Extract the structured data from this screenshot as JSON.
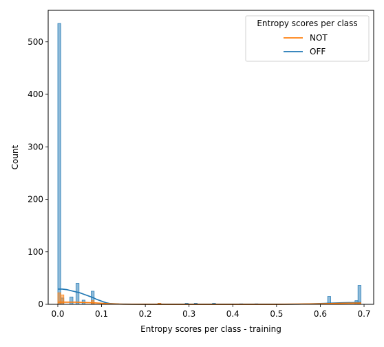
{
  "chart_data": {
    "type": "histogram",
    "xlabel": "Entropy scores per class - training",
    "ylabel": "Count",
    "xlim": [
      -0.022,
      0.722
    ],
    "ylim": [
      0,
      560
    ],
    "xticks": [
      "0.0",
      "0.1",
      "0.2",
      "0.3",
      "0.4",
      "0.5",
      "0.6",
      "0.7"
    ],
    "xtick_values": [
      0,
      0.1,
      0.2,
      0.3,
      0.4,
      0.5,
      0.6,
      0.7
    ],
    "yticks": [
      "0",
      "100",
      "200",
      "300",
      "400",
      "500"
    ],
    "ytick_values": [
      0,
      100,
      200,
      300,
      400,
      500
    ],
    "legend": {
      "title": "Entropy scores per class",
      "placement": "top-right",
      "entries": [
        {
          "label": "NOT",
          "color": "#ff7f0e"
        },
        {
          "label": "OFF",
          "color": "#1f77b4"
        }
      ]
    },
    "bin_width": 0.00693,
    "series": [
      {
        "name": "OFF",
        "color": "#1f77b4",
        "bars": [
          {
            "x": 0.0,
            "count": 535
          },
          {
            "x": 0.0069,
            "count": 12
          },
          {
            "x": 0.0277,
            "count": 14
          },
          {
            "x": 0.0416,
            "count": 40
          },
          {
            "x": 0.0555,
            "count": 8
          },
          {
            "x": 0.0762,
            "count": 25
          },
          {
            "x": 0.2287,
            "count": 2
          },
          {
            "x": 0.2911,
            "count": 2
          },
          {
            "x": 0.3119,
            "count": 2
          },
          {
            "x": 0.3535,
            "count": 2
          },
          {
            "x": 0.4158,
            "count": 1
          },
          {
            "x": 0.4505,
            "count": 1
          },
          {
            "x": 0.6168,
            "count": 15
          },
          {
            "x": 0.6792,
            "count": 7
          },
          {
            "x": 0.6861,
            "count": 36
          }
        ],
        "kde": [
          {
            "x": 0.0,
            "y": 29
          },
          {
            "x": 0.01,
            "y": 29
          },
          {
            "x": 0.02,
            "y": 28
          },
          {
            "x": 0.03,
            "y": 26
          },
          {
            "x": 0.04,
            "y": 24
          },
          {
            "x": 0.05,
            "y": 22
          },
          {
            "x": 0.06,
            "y": 19
          },
          {
            "x": 0.07,
            "y": 16
          },
          {
            "x": 0.08,
            "y": 13
          },
          {
            "x": 0.09,
            "y": 9
          },
          {
            "x": 0.1,
            "y": 6
          },
          {
            "x": 0.11,
            "y": 3
          },
          {
            "x": 0.12,
            "y": 1.5
          },
          {
            "x": 0.14,
            "y": 0.5
          },
          {
            "x": 0.17,
            "y": 0.1
          },
          {
            "x": 0.2,
            "y": 0
          },
          {
            "x": 0.3,
            "y": 0
          },
          {
            "x": 0.4,
            "y": 0
          },
          {
            "x": 0.5,
            "y": 0
          },
          {
            "x": 0.55,
            "y": 0.3
          },
          {
            "x": 0.6,
            "y": 1.5
          },
          {
            "x": 0.65,
            "y": 3
          },
          {
            "x": 0.693,
            "y": 3.5
          }
        ]
      },
      {
        "name": "NOT",
        "color": "#ff7f0e",
        "bars": [
          {
            "x": 0.0,
            "count": 22
          },
          {
            "x": 0.0069,
            "count": 18
          },
          {
            "x": 0.0762,
            "count": 7
          },
          {
            "x": 0.2287,
            "count": 2
          },
          {
            "x": 0.6861,
            "count": 3
          }
        ],
        "kde": [
          {
            "x": 0.0,
            "y": 4
          },
          {
            "x": 0.02,
            "y": 4
          },
          {
            "x": 0.04,
            "y": 4
          },
          {
            "x": 0.06,
            "y": 3.5
          },
          {
            "x": 0.08,
            "y": 3
          },
          {
            "x": 0.1,
            "y": 2
          },
          {
            "x": 0.12,
            "y": 1
          },
          {
            "x": 0.15,
            "y": 0.3
          },
          {
            "x": 0.2,
            "y": 0.1
          },
          {
            "x": 0.3,
            "y": 0
          },
          {
            "x": 0.5,
            "y": 0
          },
          {
            "x": 0.6,
            "y": 1
          },
          {
            "x": 0.65,
            "y": 2
          },
          {
            "x": 0.693,
            "y": 2.5
          }
        ]
      }
    ]
  }
}
